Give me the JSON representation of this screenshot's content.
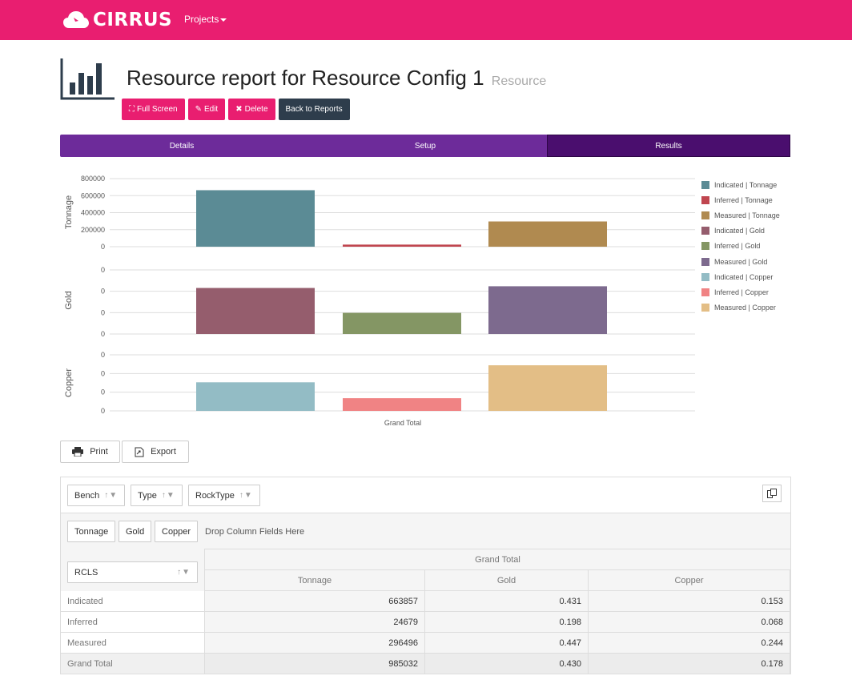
{
  "navbar": {
    "brand": "CIRRUS",
    "projects_label": "Projects"
  },
  "header": {
    "title": "Resource report for Resource Config 1",
    "subtitle": "Resource"
  },
  "buttons": {
    "fullscreen": "Full Screen",
    "edit": "Edit",
    "delete": "Delete",
    "back": "Back to Reports"
  },
  "tabs": [
    "Details",
    "Setup",
    "Results"
  ],
  "colors": {
    "brand": "#e91e70",
    "tab_bar": "#6d2b9a",
    "tab_active": "#4a0e6e",
    "dark_button": "#2e3d4c"
  },
  "chart_data": {
    "type": "bar",
    "categories": [
      "Grand Total"
    ],
    "panes": [
      {
        "ylabel": "Tonnage",
        "ticks": [
          "800000",
          "600000",
          "400000",
          "200000",
          "0"
        ],
        "ylim": [
          0,
          800000
        ]
      },
      {
        "ylabel": "Gold",
        "ticks": [
          "0",
          "0",
          "0",
          "0"
        ],
        "ylim": [
          0,
          0.6
        ]
      },
      {
        "ylabel": "Copper",
        "ticks": [
          "0",
          "0",
          "0",
          "0"
        ],
        "ylim": [
          0,
          0.3
        ]
      }
    ],
    "series": [
      {
        "name": "Indicated | Tonnage",
        "pane": 0,
        "slot": 0,
        "value": 663857,
        "color": "#5b8b95"
      },
      {
        "name": "Inferred | Tonnage",
        "pane": 0,
        "slot": 1,
        "value": 24679,
        "color": "#c0464f"
      },
      {
        "name": "Measured | Tonnage",
        "pane": 0,
        "slot": 2,
        "value": 296496,
        "color": "#b08a50"
      },
      {
        "name": "Indicated | Gold",
        "pane": 1,
        "slot": 0,
        "value": 0.431,
        "color": "#955d6d"
      },
      {
        "name": "Inferred | Gold",
        "pane": 1,
        "slot": 1,
        "value": 0.198,
        "color": "#849664"
      },
      {
        "name": "Measured | Gold",
        "pane": 1,
        "slot": 2,
        "value": 0.447,
        "color": "#7d6a8e"
      },
      {
        "name": "Indicated | Copper",
        "pane": 2,
        "slot": 0,
        "value": 0.153,
        "color": "#93bcc5"
      },
      {
        "name": "Inferred | Copper",
        "pane": 2,
        "slot": 1,
        "value": 0.068,
        "color": "#f08384"
      },
      {
        "name": "Measured | Copper",
        "pane": 2,
        "slot": 2,
        "value": 0.244,
        "color": "#e3be86"
      }
    ],
    "legend_position": "right",
    "grid": true
  },
  "toolbar": {
    "print": "Print",
    "export": "Export"
  },
  "pivot": {
    "filter_fields": [
      "Bench",
      "Type",
      "RockType"
    ],
    "data_fields": [
      "Tonnage",
      "Gold",
      "Copper"
    ],
    "drop_hint": "Drop Column Fields Here",
    "row_field": "RCLS",
    "grand_total_header": "Grand Total",
    "columns": [
      "Tonnage",
      "Gold",
      "Copper"
    ],
    "rows": [
      {
        "label": "Indicated",
        "values": [
          "663857",
          "0.431",
          "0.153"
        ]
      },
      {
        "label": "Inferred",
        "values": [
          "24679",
          "0.198",
          "0.068"
        ]
      },
      {
        "label": "Measured",
        "values": [
          "296496",
          "0.447",
          "0.244"
        ]
      },
      {
        "label": "Grand Total",
        "values": [
          "985032",
          "0.430",
          "0.178"
        ]
      }
    ]
  }
}
